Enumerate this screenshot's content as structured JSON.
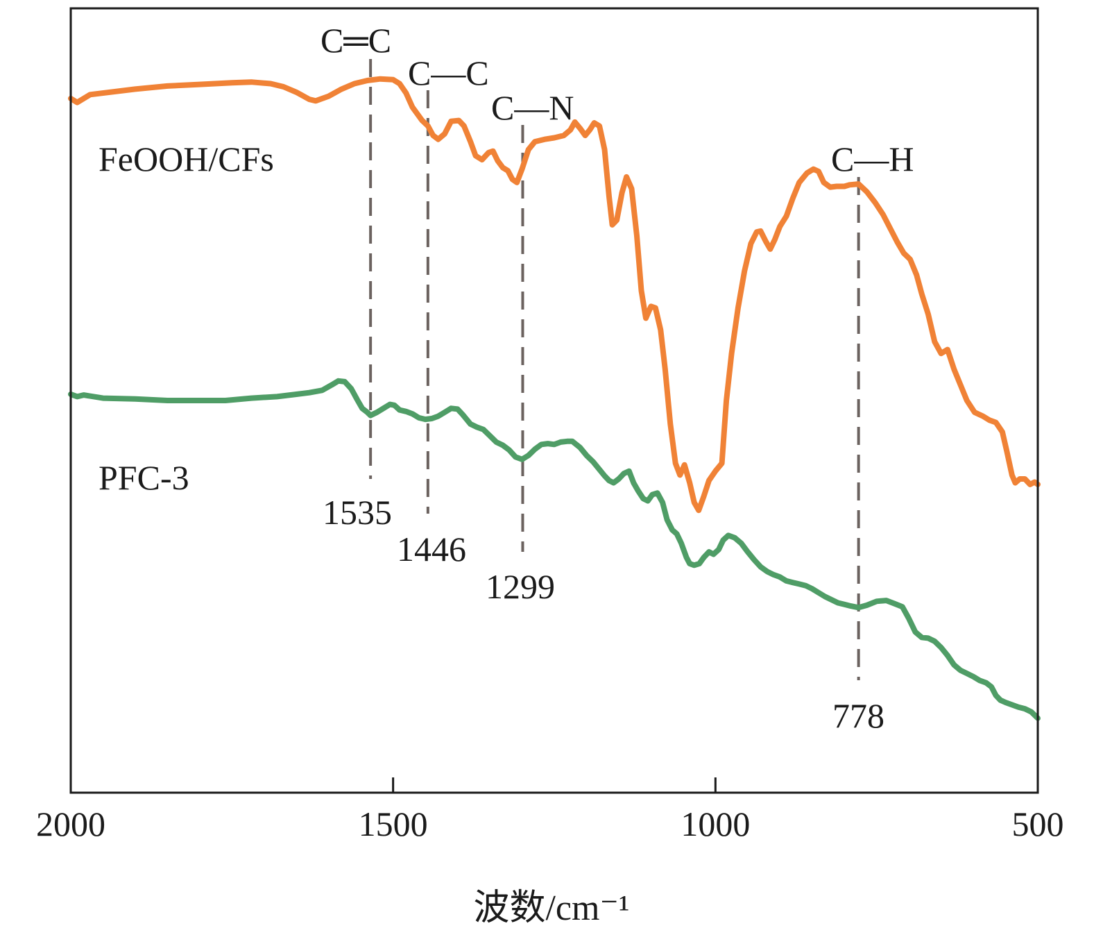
{
  "chart_data": {
    "type": "line",
    "title": "",
    "xlabel": "波数/cm⁻¹",
    "ylabel": "",
    "xlim": [
      2000,
      500
    ],
    "x_reversed": true,
    "grid": false,
    "x_ticks": [
      {
        "value": 2000,
        "label": "2000"
      },
      {
        "value": 1500,
        "label": "1500"
      },
      {
        "value": 1000,
        "label": "1000"
      },
      {
        "value": 500,
        "label": "500"
      }
    ],
    "y_ticks": [],
    "series": [
      {
        "name": "FeOOH/CFs",
        "color": "#f08236",
        "points": [
          [
            2000,
            0.885
          ],
          [
            1990,
            0.88
          ],
          [
            1970,
            0.89
          ],
          [
            1900,
            0.897
          ],
          [
            1850,
            0.901
          ],
          [
            1800,
            0.903
          ],
          [
            1750,
            0.905
          ],
          [
            1720,
            0.906
          ],
          [
            1690,
            0.904
          ],
          [
            1670,
            0.9
          ],
          [
            1650,
            0.893
          ],
          [
            1630,
            0.884
          ],
          [
            1620,
            0.882
          ],
          [
            1600,
            0.888
          ],
          [
            1580,
            0.897
          ],
          [
            1560,
            0.904
          ],
          [
            1540,
            0.908
          ],
          [
            1520,
            0.91
          ],
          [
            1500,
            0.909
          ],
          [
            1490,
            0.904
          ],
          [
            1480,
            0.892
          ],
          [
            1470,
            0.874
          ],
          [
            1455,
            0.857
          ],
          [
            1446,
            0.85
          ],
          [
            1438,
            0.838
          ],
          [
            1430,
            0.833
          ],
          [
            1420,
            0.84
          ],
          [
            1410,
            0.856
          ],
          [
            1398,
            0.857
          ],
          [
            1390,
            0.85
          ],
          [
            1380,
            0.83
          ],
          [
            1372,
            0.812
          ],
          [
            1362,
            0.807
          ],
          [
            1352,
            0.816
          ],
          [
            1345,
            0.818
          ],
          [
            1338,
            0.806
          ],
          [
            1330,
            0.797
          ],
          [
            1322,
            0.793
          ],
          [
            1315,
            0.782
          ],
          [
            1308,
            0.778
          ],
          [
            1300,
            0.795
          ],
          [
            1290,
            0.82
          ],
          [
            1280,
            0.83
          ],
          [
            1265,
            0.833
          ],
          [
            1250,
            0.835
          ],
          [
            1235,
            0.838
          ],
          [
            1225,
            0.845
          ],
          [
            1218,
            0.855
          ],
          [
            1210,
            0.847
          ],
          [
            1202,
            0.838
          ],
          [
            1195,
            0.845
          ],
          [
            1188,
            0.854
          ],
          [
            1180,
            0.85
          ],
          [
            1172,
            0.82
          ],
          [
            1165,
            0.76
          ],
          [
            1160,
            0.724
          ],
          [
            1153,
            0.73
          ],
          [
            1145,
            0.765
          ],
          [
            1138,
            0.785
          ],
          [
            1130,
            0.77
          ],
          [
            1122,
            0.71
          ],
          [
            1115,
            0.64
          ],
          [
            1108,
            0.605
          ],
          [
            1100,
            0.62
          ],
          [
            1093,
            0.618
          ],
          [
            1085,
            0.59
          ],
          [
            1078,
            0.54
          ],
          [
            1070,
            0.47
          ],
          [
            1062,
            0.42
          ],
          [
            1055,
            0.405
          ],
          [
            1048,
            0.418
          ],
          [
            1040,
            0.395
          ],
          [
            1033,
            0.37
          ],
          [
            1026,
            0.36
          ],
          [
            1018,
            0.378
          ],
          [
            1010,
            0.398
          ],
          [
            1000,
            0.41
          ],
          [
            990,
            0.42
          ],
          [
            983,
            0.5
          ],
          [
            975,
            0.56
          ],
          [
            965,
            0.618
          ],
          [
            955,
            0.665
          ],
          [
            945,
            0.7
          ],
          [
            936,
            0.715
          ],
          [
            930,
            0.716
          ],
          [
            922,
            0.703
          ],
          [
            915,
            0.693
          ],
          [
            908,
            0.705
          ],
          [
            900,
            0.722
          ],
          [
            890,
            0.735
          ],
          [
            880,
            0.758
          ],
          [
            870,
            0.778
          ],
          [
            858,
            0.79
          ],
          [
            848,
            0.795
          ],
          [
            840,
            0.792
          ],
          [
            832,
            0.778
          ],
          [
            822,
            0.772
          ],
          [
            812,
            0.773
          ],
          [
            800,
            0.773
          ],
          [
            792,
            0.775
          ],
          [
            778,
            0.776
          ],
          [
            765,
            0.766
          ],
          [
            752,
            0.752
          ],
          [
            740,
            0.737
          ],
          [
            728,
            0.718
          ],
          [
            718,
            0.702
          ],
          [
            708,
            0.688
          ],
          [
            698,
            0.68
          ],
          [
            688,
            0.66
          ],
          [
            680,
            0.636
          ],
          [
            670,
            0.61
          ],
          [
            660,
            0.575
          ],
          [
            650,
            0.56
          ],
          [
            640,
            0.565
          ],
          [
            630,
            0.54
          ],
          [
            620,
            0.52
          ],
          [
            610,
            0.5
          ],
          [
            598,
            0.485
          ],
          [
            585,
            0.48
          ],
          [
            575,
            0.475
          ],
          [
            565,
            0.472
          ],
          [
            555,
            0.46
          ],
          [
            548,
            0.435
          ],
          [
            540,
            0.405
          ],
          [
            535,
            0.395
          ],
          [
            528,
            0.4
          ],
          [
            520,
            0.4
          ],
          [
            512,
            0.393
          ],
          [
            505,
            0.396
          ],
          [
            500,
            0.393
          ]
        ]
      },
      {
        "name": "PFC-3",
        "color": "#4f9d66",
        "points": [
          [
            2000,
            0.508
          ],
          [
            1990,
            0.505
          ],
          [
            1980,
            0.507
          ],
          [
            1950,
            0.503
          ],
          [
            1900,
            0.502
          ],
          [
            1850,
            0.5
          ],
          [
            1800,
            0.5
          ],
          [
            1760,
            0.5
          ],
          [
            1720,
            0.503
          ],
          [
            1680,
            0.505
          ],
          [
            1650,
            0.508
          ],
          [
            1630,
            0.51
          ],
          [
            1610,
            0.513
          ],
          [
            1595,
            0.52
          ],
          [
            1585,
            0.525
          ],
          [
            1575,
            0.524
          ],
          [
            1565,
            0.515
          ],
          [
            1555,
            0.5
          ],
          [
            1548,
            0.49
          ],
          [
            1540,
            0.485
          ],
          [
            1535,
            0.481
          ],
          [
            1525,
            0.485
          ],
          [
            1515,
            0.49
          ],
          [
            1505,
            0.495
          ],
          [
            1498,
            0.494
          ],
          [
            1490,
            0.488
          ],
          [
            1480,
            0.486
          ],
          [
            1470,
            0.483
          ],
          [
            1460,
            0.478
          ],
          [
            1450,
            0.476
          ],
          [
            1440,
            0.477
          ],
          [
            1430,
            0.48
          ],
          [
            1420,
            0.485
          ],
          [
            1410,
            0.49
          ],
          [
            1400,
            0.489
          ],
          [
            1392,
            0.482
          ],
          [
            1380,
            0.47
          ],
          [
            1370,
            0.466
          ],
          [
            1360,
            0.463
          ],
          [
            1350,
            0.455
          ],
          [
            1340,
            0.447
          ],
          [
            1330,
            0.443
          ],
          [
            1320,
            0.437
          ],
          [
            1310,
            0.428
          ],
          [
            1300,
            0.425
          ],
          [
            1290,
            0.43
          ],
          [
            1280,
            0.438
          ],
          [
            1270,
            0.444
          ],
          [
            1260,
            0.445
          ],
          [
            1250,
            0.444
          ],
          [
            1240,
            0.447
          ],
          [
            1230,
            0.448
          ],
          [
            1222,
            0.448
          ],
          [
            1210,
            0.44
          ],
          [
            1200,
            0.43
          ],
          [
            1190,
            0.422
          ],
          [
            1180,
            0.412
          ],
          [
            1172,
            0.404
          ],
          [
            1165,
            0.398
          ],
          [
            1158,
            0.395
          ],
          [
            1150,
            0.4
          ],
          [
            1142,
            0.407
          ],
          [
            1134,
            0.41
          ],
          [
            1127,
            0.395
          ],
          [
            1120,
            0.385
          ],
          [
            1112,
            0.375
          ],
          [
            1105,
            0.372
          ],
          [
            1098,
            0.38
          ],
          [
            1090,
            0.382
          ],
          [
            1082,
            0.37
          ],
          [
            1075,
            0.348
          ],
          [
            1067,
            0.335
          ],
          [
            1060,
            0.33
          ],
          [
            1053,
            0.318
          ],
          [
            1045,
            0.3
          ],
          [
            1040,
            0.292
          ],
          [
            1033,
            0.29
          ],
          [
            1025,
            0.292
          ],
          [
            1018,
            0.3
          ],
          [
            1010,
            0.307
          ],
          [
            1003,
            0.304
          ],
          [
            995,
            0.31
          ],
          [
            988,
            0.322
          ],
          [
            980,
            0.328
          ],
          [
            970,
            0.325
          ],
          [
            960,
            0.318
          ],
          [
            950,
            0.307
          ],
          [
            940,
            0.297
          ],
          [
            930,
            0.288
          ],
          [
            920,
            0.282
          ],
          [
            910,
            0.278
          ],
          [
            900,
            0.275
          ],
          [
            890,
            0.27
          ],
          [
            880,
            0.268
          ],
          [
            870,
            0.266
          ],
          [
            860,
            0.264
          ],
          [
            850,
            0.26
          ],
          [
            840,
            0.255
          ],
          [
            830,
            0.25
          ],
          [
            820,
            0.246
          ],
          [
            810,
            0.242
          ],
          [
            800,
            0.24
          ],
          [
            790,
            0.238
          ],
          [
            778,
            0.236
          ],
          [
            765,
            0.239
          ],
          [
            750,
            0.244
          ],
          [
            735,
            0.245
          ],
          [
            722,
            0.241
          ],
          [
            710,
            0.237
          ],
          [
            700,
            0.222
          ],
          [
            690,
            0.205
          ],
          [
            680,
            0.198
          ],
          [
            670,
            0.197
          ],
          [
            660,
            0.193
          ],
          [
            650,
            0.185
          ],
          [
            640,
            0.175
          ],
          [
            630,
            0.163
          ],
          [
            620,
            0.156
          ],
          [
            610,
            0.152
          ],
          [
            600,
            0.148
          ],
          [
            590,
            0.143
          ],
          [
            580,
            0.14
          ],
          [
            572,
            0.135
          ],
          [
            565,
            0.124
          ],
          [
            558,
            0.118
          ],
          [
            550,
            0.115
          ],
          [
            540,
            0.112
          ],
          [
            530,
            0.109
          ],
          [
            520,
            0.107
          ],
          [
            510,
            0.103
          ],
          [
            500,
            0.095
          ]
        ]
      }
    ],
    "series_labels": [
      {
        "text": "FeOOH/CFs",
        "series": "FeOOH/CFs"
      },
      {
        "text": "PFC-3",
        "series": "PFC-3"
      }
    ],
    "annotations": [
      {
        "x": 1535,
        "bond": "C═C",
        "wavenumber": "1535"
      },
      {
        "x": 1446,
        "bond": "C—C",
        "wavenumber": "1446"
      },
      {
        "x": 1299,
        "bond": "C—N",
        "wavenumber": "1299"
      },
      {
        "x": 778,
        "bond": "C—H",
        "wavenumber": "778"
      }
    ],
    "annotation_line_color": "#6b625f"
  }
}
